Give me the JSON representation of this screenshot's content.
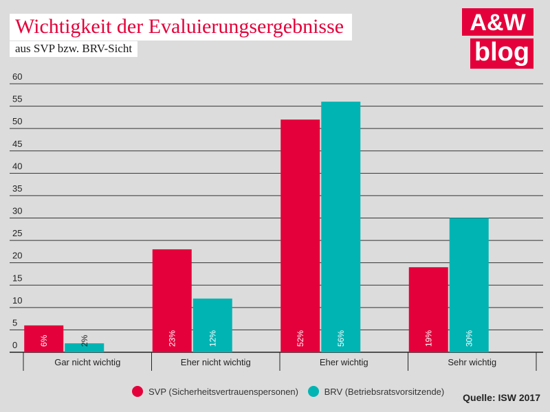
{
  "header": {
    "title": "Wichtigkeit der Evaluierungsergebnisse",
    "subtitle": "aus SVP bzw. BRV-Sicht"
  },
  "logo": {
    "line1": "A&W",
    "line2": "blog"
  },
  "colors": {
    "svp": "#e4003a",
    "brv": "#00b4b4",
    "title": "#e4003a"
  },
  "chart_data": {
    "type": "bar",
    "categories": [
      "Gar nicht wichtig",
      "Eher nicht wichtig",
      "Eher wichtig",
      "Sehr wichtig"
    ],
    "series": [
      {
        "name": "SVP (Sicherheitsvertrauenspersonen)",
        "values": [
          6,
          23,
          52,
          19
        ],
        "labels": [
          "6%",
          "23%",
          "52%",
          "19%"
        ]
      },
      {
        "name": "BRV (Betriebsratsvorsitzende)",
        "values": [
          2,
          12,
          56,
          30
        ],
        "labels": [
          "2%",
          "12%",
          "56%",
          "30%"
        ]
      }
    ],
    "ylim": [
      0,
      60
    ],
    "yticks": [
      0,
      5,
      10,
      15,
      20,
      25,
      30,
      35,
      40,
      45,
      50,
      55,
      60
    ],
    "grid": true,
    "legend": "bottom"
  },
  "source": "Quelle: ISW 2017"
}
